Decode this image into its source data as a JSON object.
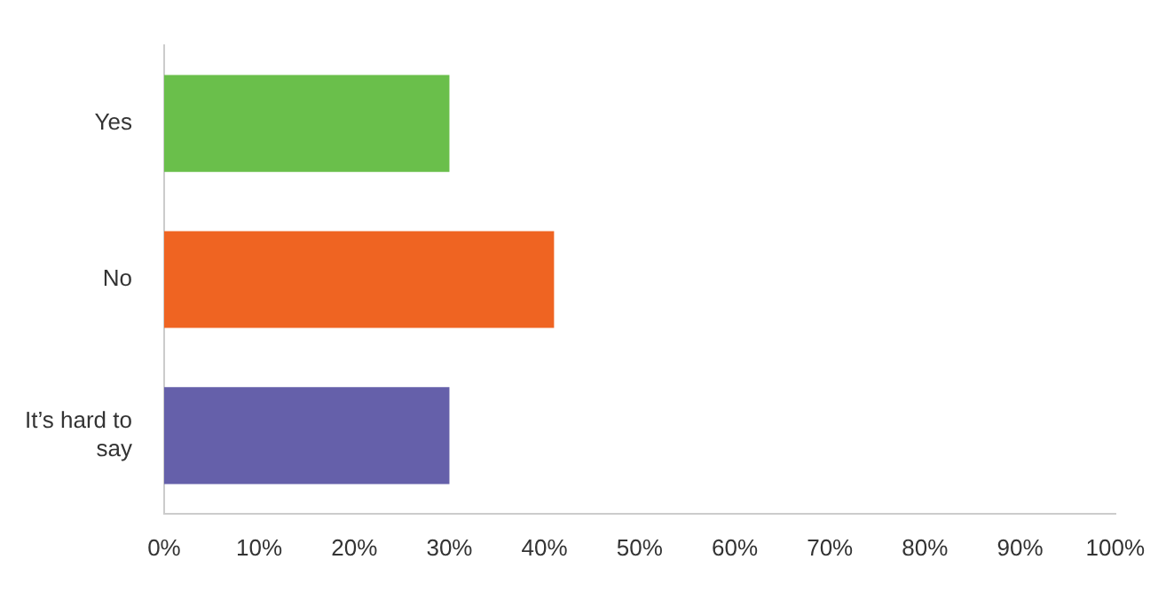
{
  "chart_data": {
    "type": "bar",
    "orientation": "horizontal",
    "categories": [
      "Yes",
      "No",
      "It’s hard to say"
    ],
    "values": [
      30,
      41,
      30
    ],
    "colors": [
      "#6abf4b",
      "#ef6422",
      "#6560aa"
    ],
    "xlim": [
      0,
      100
    ],
    "xticks": [
      {
        "value": 0,
        "label": "0%"
      },
      {
        "value": 10,
        "label": "10%"
      },
      {
        "value": 20,
        "label": "20%"
      },
      {
        "value": 30,
        "label": "30%"
      },
      {
        "value": 40,
        "label": "40%"
      },
      {
        "value": 50,
        "label": "50%"
      },
      {
        "value": 60,
        "label": "60%"
      },
      {
        "value": 70,
        "label": "70%"
      },
      {
        "value": 80,
        "label": "80%"
      },
      {
        "value": 90,
        "label": "90%"
      },
      {
        "value": 100,
        "label": "100%"
      }
    ],
    "grid": false,
    "legend": false
  }
}
